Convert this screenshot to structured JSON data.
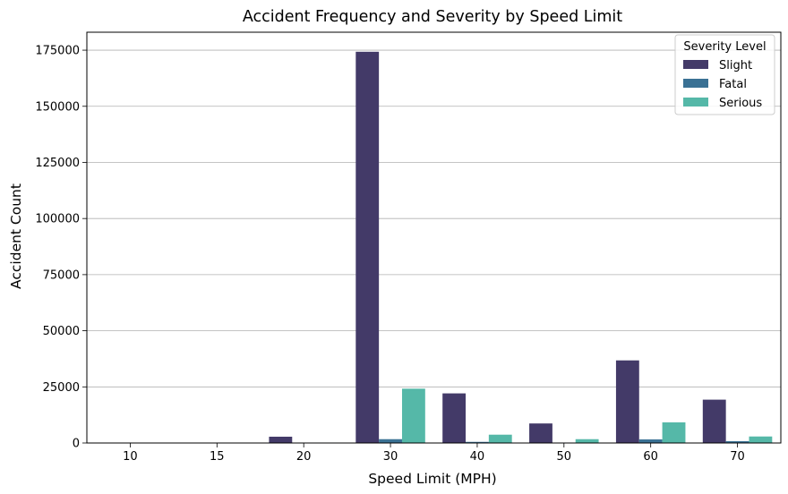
{
  "chart_data": {
    "type": "bar",
    "title": "Accident Frequency and Severity by Speed Limit",
    "xlabel": "Speed Limit (MPH)",
    "ylabel": "Accident Count",
    "categories": [
      "10",
      "15",
      "20",
      "30",
      "40",
      "50",
      "60",
      "70"
    ],
    "series": [
      {
        "name": "Slight",
        "color": "#433a68",
        "values": [
          0,
          0,
          2800,
          174300,
          22100,
          8700,
          36800,
          19300
        ]
      },
      {
        "name": "Fatal",
        "color": "#3a7194",
        "values": [
          0,
          0,
          30,
          1700,
          500,
          200,
          1600,
          800
        ]
      },
      {
        "name": "Serious",
        "color": "#55b8a8",
        "values": [
          0,
          0,
          200,
          24200,
          3700,
          1700,
          9200,
          2900
        ]
      }
    ],
    "ylim": [
      0,
      183000
    ],
    "yticks": [
      0,
      25000,
      50000,
      75000,
      100000,
      125000,
      150000,
      175000
    ],
    "grid": "y",
    "legend": {
      "title": "Severity Level",
      "position": "top-right"
    }
  }
}
